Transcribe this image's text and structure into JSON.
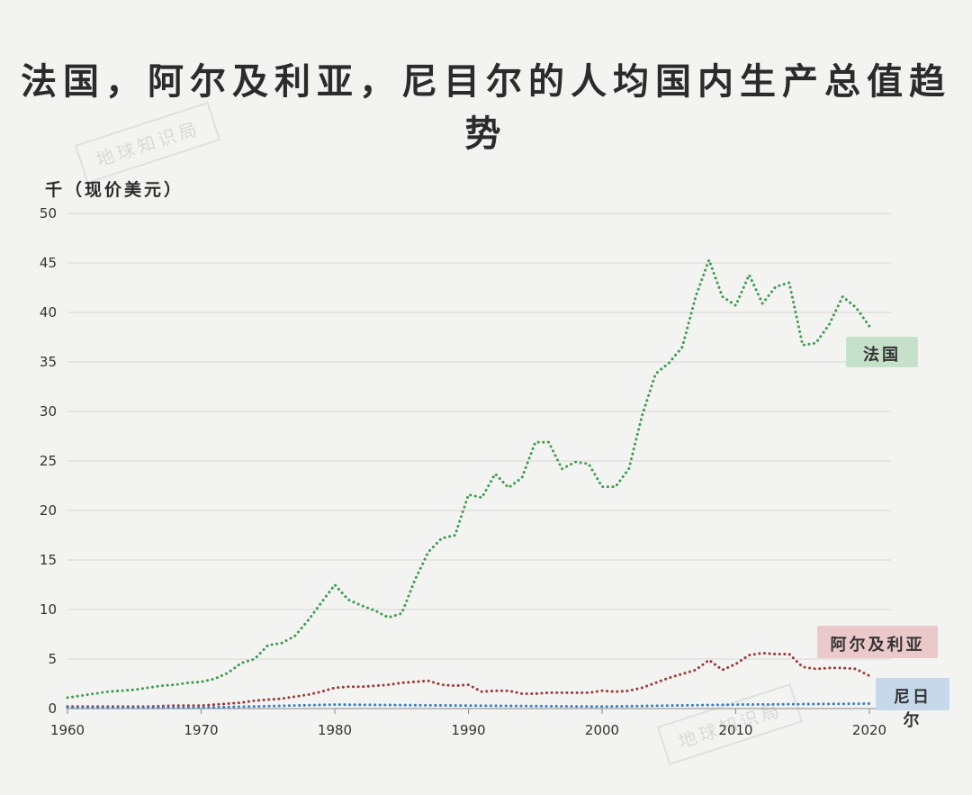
{
  "title": "法国，阿尔及利亚，尼目尔的人均国内生产总值趋势",
  "watermark": "地球知识局",
  "chart_data": {
    "type": "line",
    "ylabel": "千（现价美元）",
    "xlabel": "",
    "xlim": [
      1960,
      2020
    ],
    "ylim": [
      0,
      50
    ],
    "xticks": [
      "1960",
      "1970",
      "1980",
      "1990",
      "2000",
      "2010",
      "2020"
    ],
    "yticks": [
      "0",
      "5",
      "10",
      "15",
      "20",
      "25",
      "30",
      "35",
      "40",
      "45",
      "50"
    ],
    "grid": true,
    "legend": "inline labels at line ends",
    "series": [
      {
        "name": "法国",
        "color": "#3e9b4f",
        "x": [
          1960,
          1961,
          1962,
          1963,
          1964,
          1965,
          1966,
          1967,
          1968,
          1969,
          1970,
          1971,
          1972,
          1973,
          1974,
          1975,
          1976,
          1977,
          1978,
          1979,
          1980,
          1981,
          1982,
          1983,
          1984,
          1985,
          1986,
          1987,
          1988,
          1989,
          1990,
          1991,
          1992,
          1993,
          1994,
          1995,
          1996,
          1997,
          1998,
          1999,
          2000,
          2001,
          2002,
          2003,
          2004,
          2005,
          2006,
          2007,
          2008,
          2009,
          2010,
          2011,
          2012,
          2013,
          2014,
          2015,
          2016,
          2017,
          2018,
          2019,
          2020
        ],
        "values": [
          1.1,
          1.3,
          1.5,
          1.7,
          1.8,
          1.9,
          2.1,
          2.3,
          2.4,
          2.6,
          2.7,
          3.0,
          3.6,
          4.6,
          5.0,
          6.4,
          6.6,
          7.3,
          8.9,
          10.7,
          12.5,
          11.0,
          10.4,
          9.9,
          9.2,
          9.6,
          13.0,
          15.8,
          17.2,
          17.5,
          21.6,
          21.3,
          23.7,
          22.3,
          23.3,
          26.9,
          26.9,
          24.2,
          24.9,
          24.7,
          22.4,
          22.4,
          24.2,
          29.6,
          33.8,
          34.9,
          36.5,
          41.6,
          45.3,
          41.6,
          40.7,
          43.8,
          40.9,
          42.6,
          43.0,
          36.7,
          36.9,
          38.8,
          41.6,
          40.5,
          38.6
        ]
      },
      {
        "name": "阿尔及利亚",
        "color": "#9c3a3a",
        "x": [
          1960,
          1962,
          1964,
          1966,
          1968,
          1970,
          1971,
          1972,
          1973,
          1974,
          1975,
          1976,
          1977,
          1978,
          1979,
          1980,
          1981,
          1982,
          1983,
          1984,
          1985,
          1986,
          1987,
          1988,
          1989,
          1990,
          1991,
          1992,
          1993,
          1994,
          1995,
          1996,
          1997,
          1998,
          1999,
          2000,
          2001,
          2002,
          2003,
          2004,
          2005,
          2006,
          2007,
          2008,
          2009,
          2010,
          2011,
          2012,
          2013,
          2014,
          2015,
          2016,
          2017,
          2018,
          2019,
          2020
        ],
        "values": [
          0.2,
          0.2,
          0.2,
          0.2,
          0.3,
          0.3,
          0.4,
          0.5,
          0.6,
          0.8,
          0.9,
          1.0,
          1.2,
          1.4,
          1.7,
          2.1,
          2.2,
          2.2,
          2.3,
          2.4,
          2.6,
          2.7,
          2.8,
          2.4,
          2.3,
          2.4,
          1.7,
          1.8,
          1.8,
          1.5,
          1.5,
          1.6,
          1.6,
          1.6,
          1.6,
          1.8,
          1.7,
          1.8,
          2.1,
          2.6,
          3.1,
          3.5,
          3.9,
          4.9,
          3.9,
          4.5,
          5.4,
          5.6,
          5.5,
          5.5,
          4.2,
          4.0,
          4.1,
          4.1,
          4.0,
          3.3
        ]
      },
      {
        "name": "尼日尔",
        "color": "#3a7fc4",
        "x": [
          1960,
          1970,
          1980,
          1990,
          2000,
          2010,
          2020
        ],
        "values": [
          0.1,
          0.1,
          0.4,
          0.3,
          0.2,
          0.4,
          0.5
        ]
      }
    ]
  }
}
